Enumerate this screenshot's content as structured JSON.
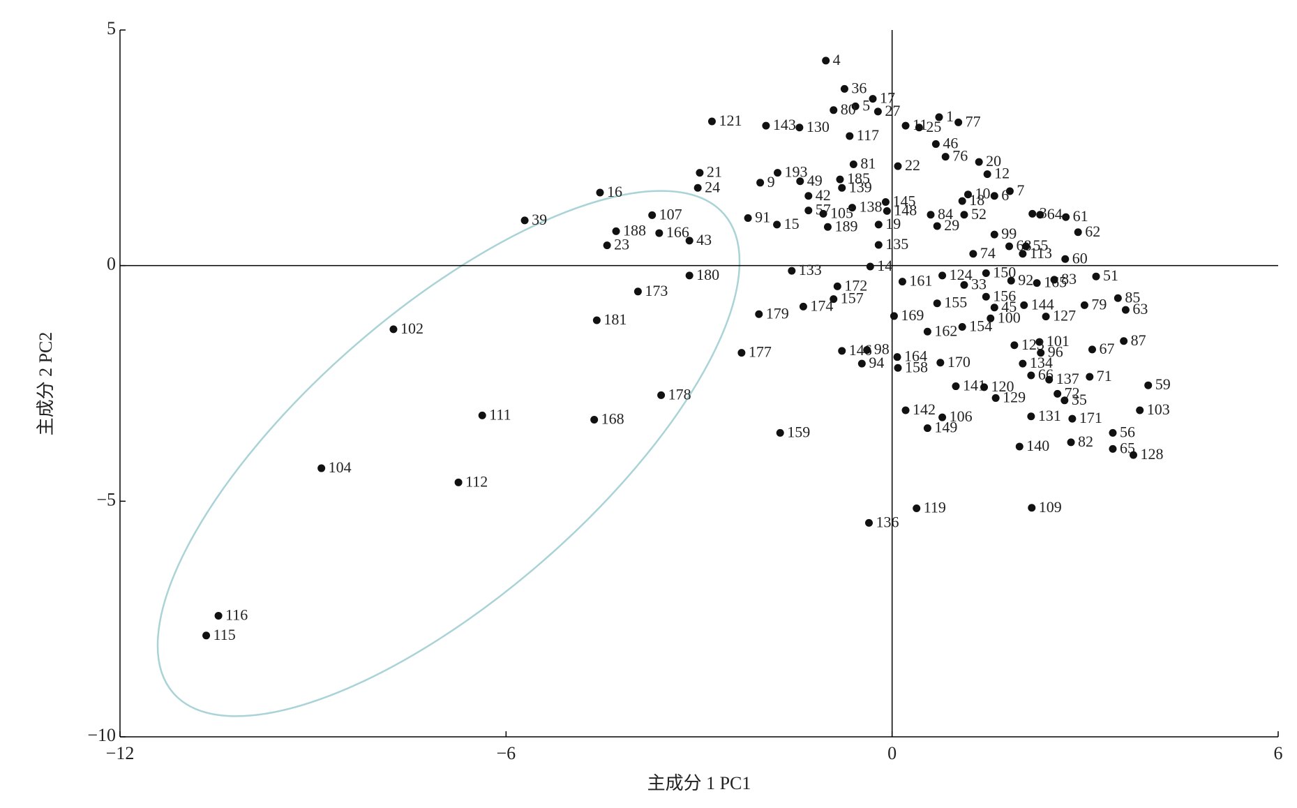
{
  "chart_data": {
    "type": "scatter",
    "x_label": "主成分 1 PC1",
    "y_label": "主成分 2 PC2",
    "xlim": [
      -12,
      6
    ],
    "ylim": [
      -10,
      5
    ],
    "xticks": [
      {
        "value": -12,
        "label": "−12"
      },
      {
        "value": -6,
        "label": "−6"
      },
      0,
      6
    ],
    "yticks": [
      {
        "value": -10,
        "label": "−10"
      },
      {
        "value": -5,
        "label": "−5"
      },
      0,
      5
    ],
    "point_labels": [
      "4",
      "36",
      "17",
      "5",
      "80",
      "27",
      "1",
      "77",
      "121",
      "143",
      "130",
      "11",
      "25",
      "117",
      "46",
      "76",
      "20",
      "12",
      "7",
      "6",
      "10",
      "18",
      "52",
      "84",
      "22",
      "81",
      "21",
      "24",
      "193",
      "9",
      "49",
      "185",
      "139",
      "42",
      "138",
      "57",
      "105",
      "145",
      "148",
      "91",
      "15",
      "189",
      "19",
      "29",
      "99",
      "68",
      "55",
      "113",
      "3",
      "64",
      "61",
      "62",
      "60",
      "135",
      "74",
      "16",
      "39",
      "107",
      "188",
      "166",
      "43",
      "23",
      "180",
      "173",
      "181",
      "102",
      "111",
      "168",
      "178",
      "104",
      "112",
      "116",
      "115",
      "133",
      "172",
      "157",
      "174",
      "179",
      "14",
      "161",
      "124",
      "33",
      "156",
      "150",
      "92",
      "165",
      "83",
      "51",
      "79",
      "85",
      "63",
      "144",
      "127",
      "45",
      "100",
      "154",
      "162",
      "155",
      "169",
      "87",
      "67",
      "101",
      "123",
      "96",
      "134",
      "66",
      "137",
      "71",
      "72",
      "35",
      "59",
      "103",
      "171",
      "131",
      "56",
      "65",
      "128",
      "82",
      "140",
      "141",
      "120",
      "129",
      "142",
      "106",
      "149",
      "170",
      "164",
      "158",
      "146",
      "98",
      "94",
      "177",
      "159",
      "136",
      "119",
      "109"
    ],
    "x": [
      -1.03,
      -0.74,
      -0.3,
      -0.57,
      -0.91,
      -0.22,
      0.73,
      1.03,
      -2.8,
      -1.96,
      -1.44,
      0.21,
      0.42,
      -0.66,
      0.68,
      0.83,
      1.35,
      1.48,
      1.83,
      1.59,
      1.18,
      1.09,
      1.12,
      0.6,
      0.09,
      -0.6,
      -2.99,
      -3.02,
      -1.78,
      -2.05,
      -1.43,
      -0.81,
      -0.78,
      -1.3,
      -0.62,
      -1.3,
      -1.07,
      -0.1,
      -0.08,
      -2.24,
      -1.79,
      -1.0,
      -0.21,
      0.7,
      1.59,
      1.82,
      2.08,
      2.03,
      2.18,
      2.3,
      2.7,
      2.89,
      2.69,
      -0.21,
      1.26,
      -4.54,
      -5.71,
      -3.73,
      -4.29,
      -3.62,
      -3.15,
      -4.43,
      -3.15,
      -3.95,
      -4.59,
      -7.75,
      -6.37,
      -4.63,
      -3.59,
      -8.87,
      -6.74,
      -10.47,
      -10.66,
      -1.56,
      -0.85,
      -0.91,
      -1.38,
      -2.07,
      -0.34,
      0.16,
      0.78,
      1.12,
      1.46,
      1.46,
      1.85,
      2.25,
      2.52,
      3.17,
      2.99,
      3.51,
      3.63,
      2.05,
      2.39,
      1.59,
      1.53,
      1.09,
      0.55,
      0.7,
      0.03,
      3.6,
      3.11,
      2.29,
      1.9,
      2.31,
      2.03,
      2.16,
      2.44,
      3.07,
      2.57,
      2.68,
      3.98,
      3.85,
      2.8,
      2.16,
      3.43,
      3.43,
      3.75,
      2.78,
      1.98,
      0.99,
      1.43,
      1.61,
      0.21,
      0.78,
      0.55,
      0.75,
      0.08,
      0.09,
      -0.78,
      -0.39,
      -0.47,
      -2.34,
      -1.74,
      -0.36,
      0.38,
      2.17
    ],
    "series": [
      {
        "color": "#111111",
        "values": [
          4.35,
          3.75,
          3.54,
          3.38,
          3.3,
          3.27,
          3.15,
          3.04,
          3.06,
          2.97,
          2.93,
          2.97,
          2.93,
          2.75,
          2.58,
          2.31,
          2.2,
          1.94,
          1.58,
          1.48,
          1.51,
          1.37,
          1.08,
          1.08,
          2.11,
          2.15,
          1.97,
          1.65,
          1.97,
          1.76,
          1.79,
          1.83,
          1.65,
          1.48,
          1.23,
          1.17,
          1.1,
          1.35,
          1.16,
          1.01,
          0.87,
          0.82,
          0.87,
          0.84,
          0.66,
          0.41,
          0.41,
          0.25,
          1.1,
          1.08,
          1.03,
          0.71,
          0.14,
          0.44,
          0.25,
          1.55,
          0.96,
          1.07,
          0.73,
          0.69,
          0.53,
          0.43,
          -0.21,
          -0.55,
          -1.16,
          -1.35,
          -3.18,
          -3.27,
          -2.75,
          -4.3,
          -4.6,
          -7.43,
          -7.85,
          -0.11,
          -0.44,
          -0.71,
          -0.87,
          -1.03,
          -0.02,
          -0.34,
          -0.21,
          -0.41,
          -0.66,
          -0.16,
          -0.32,
          -0.37,
          -0.3,
          -0.23,
          -0.84,
          -0.69,
          -0.94,
          -0.84,
          -1.08,
          -0.89,
          -1.12,
          -1.3,
          -1.4,
          -0.8,
          -1.07,
          -1.6,
          -1.78,
          -1.62,
          -1.69,
          -1.85,
          -2.08,
          -2.33,
          -2.42,
          -2.36,
          -2.72,
          -2.86,
          -2.54,
          -3.07,
          -3.25,
          -3.2,
          -3.55,
          -3.89,
          -4.02,
          -3.75,
          -3.84,
          -2.56,
          -2.58,
          -2.81,
          -3.07,
          -3.22,
          -3.45,
          -2.06,
          -1.94,
          -2.17,
          -1.81,
          -1.79,
          -2.08,
          -1.85,
          -3.55,
          -5.46,
          -5.15,
          -5.14
        ]
      }
    ]
  }
}
